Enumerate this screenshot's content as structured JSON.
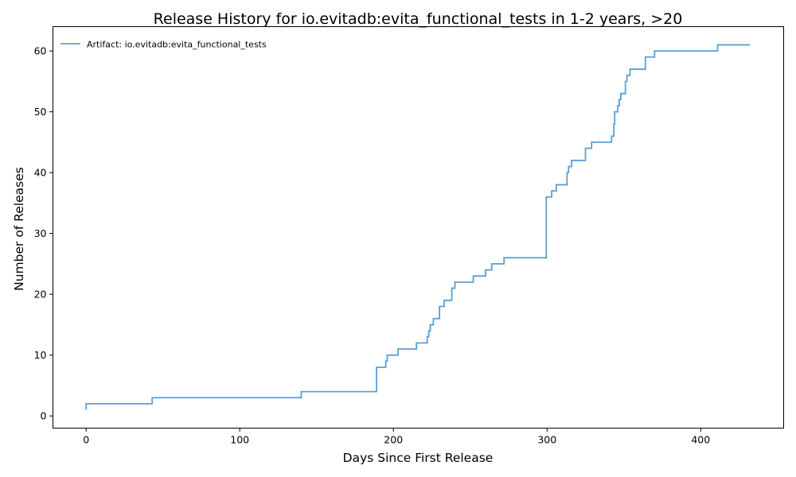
{
  "chart_data": {
    "type": "line",
    "title": "Release History for io.evitadb:evita_functional_tests in 1-2 years, >20",
    "xlabel": "Days Since First Release",
    "ylabel": "Number of Releases",
    "xlim": [
      -21.6,
      454
    ],
    "ylim": [
      -2,
      64
    ],
    "x_ticks": [
      0,
      100,
      200,
      300,
      400
    ],
    "y_ticks": [
      0,
      10,
      20,
      30,
      40,
      50,
      60
    ],
    "grid": false,
    "legend_position": "top-left",
    "series": [
      {
        "name": "Artifact: io.evitadb:evita_functional_tests",
        "color": "#5a9fd0",
        "step": "post",
        "x": [
          0,
          0,
          43,
          140,
          189,
          195,
          196,
          203,
          215,
          222,
          223,
          224,
          226,
          230,
          233,
          238,
          240,
          252,
          260,
          264,
          272,
          299.5,
          299.5,
          303,
          306,
          313,
          314,
          316,
          325,
          329,
          342,
          343.5,
          344,
          346,
          347,
          348,
          351,
          352,
          354,
          356,
          364,
          370,
          411,
          432
        ],
        "y": [
          1,
          2,
          3,
          4,
          8,
          9,
          10,
          11,
          12,
          13,
          14,
          15,
          16,
          18,
          19,
          21,
          22,
          23,
          24,
          25,
          26,
          34,
          36,
          37,
          38,
          40,
          41,
          42,
          44,
          45,
          46,
          48,
          50,
          51,
          52,
          53,
          55,
          56,
          57,
          57,
          59,
          60,
          61,
          61
        ]
      }
    ]
  }
}
